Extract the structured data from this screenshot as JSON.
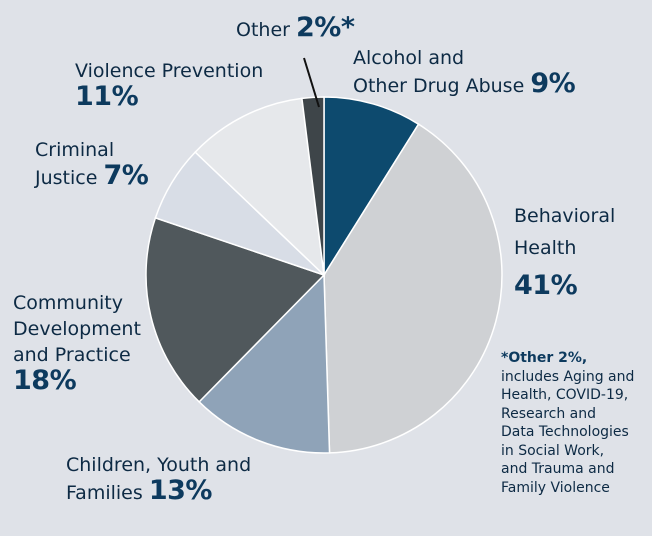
{
  "chart_data": {
    "type": "pie",
    "slices": [
      {
        "label": "Alcohol and Other Drug Abuse",
        "value": 9,
        "color": "#0d4a6e"
      },
      {
        "label": "Behavioral Health",
        "value": 41,
        "color": "#cfd1d4"
      },
      {
        "label": "Children, Youth and Families",
        "value": 13,
        "color": "#8fa3b8"
      },
      {
        "label": "Community Development and Practice",
        "value": 18,
        "color": "#50585c"
      },
      {
        "label": "Criminal Justice",
        "value": 7,
        "color": "#d8dde6"
      },
      {
        "label": "Violence Prevention",
        "value": 11,
        "color": "#e6e8eb"
      },
      {
        "label": "Other",
        "value": 2,
        "color": "#3e4549"
      }
    ]
  },
  "labels": {
    "other": {
      "name": "Other",
      "pct": "2%*"
    },
    "alcohol": {
      "line1": "Alcohol and",
      "line2": "Other Drug Abuse",
      "pct": "9%"
    },
    "behavioral": {
      "line1": "Behavioral",
      "line2": "Health",
      "pct": "41%"
    },
    "children": {
      "line1": "Children, Youth and",
      "line2": "Families",
      "pct": "13%"
    },
    "community": {
      "line1": "Community",
      "line2": "Development",
      "line3": "and Practice",
      "pct": "18%"
    },
    "criminal": {
      "line1": "Criminal",
      "line2": "Justice",
      "pct": "7%"
    },
    "violence": {
      "name": "Violence Prevention",
      "pct": "11%"
    }
  },
  "footnote": {
    "title": "*Other 2%,",
    "lines": [
      "includes Aging and",
      "Health, COVID-19,",
      "Research and",
      "Data Technologies",
      "in Social Work,",
      "and Trauma and",
      "Family Violence"
    ]
  },
  "colors": {
    "background": "#dfe2e8",
    "label_text": "#0d2a44",
    "percent_text": "#0d3a5e"
  }
}
